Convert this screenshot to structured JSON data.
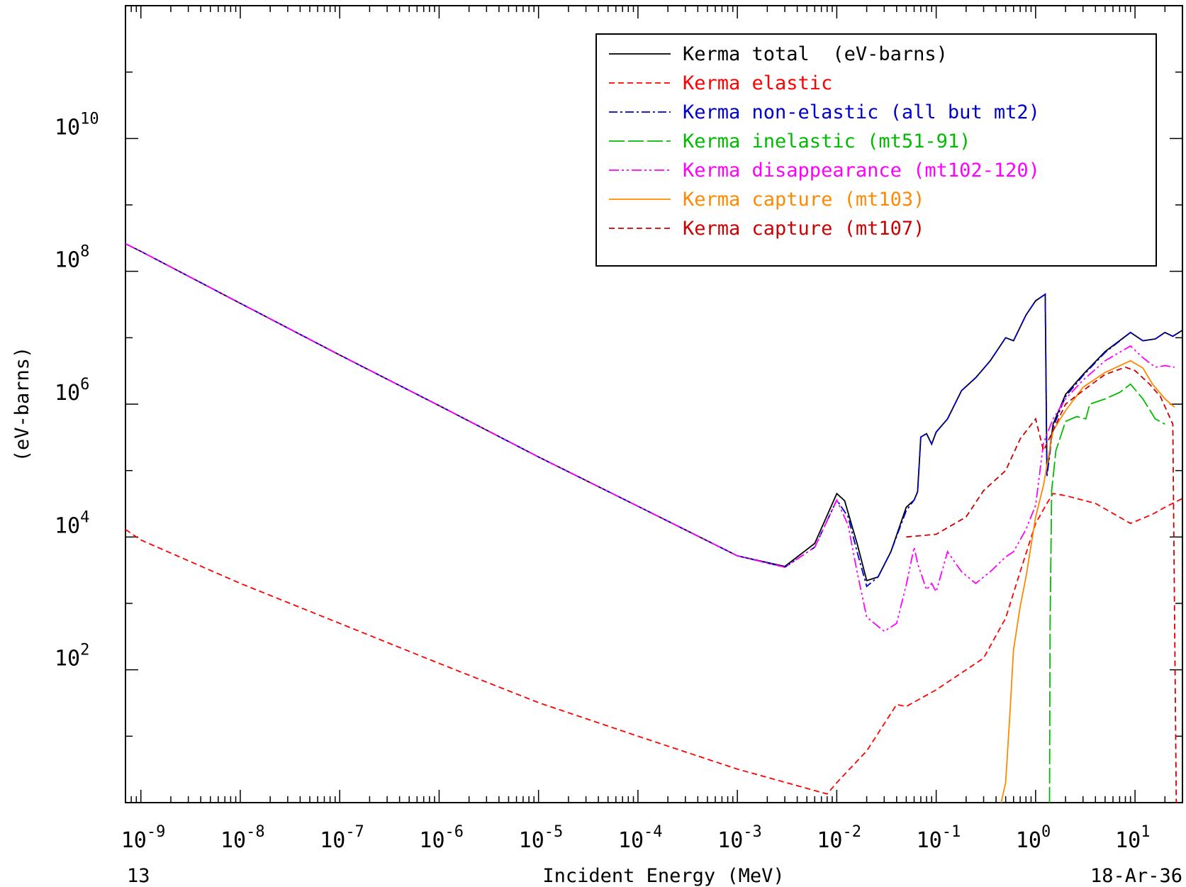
{
  "chart_data": {
    "type": "line",
    "title": "",
    "xlabel": "Incident Energy (MeV)",
    "ylabel": "(eV-barns)",
    "x_scale": "log",
    "y_scale": "log",
    "xlim": [
      7e-10,
      30
    ],
    "ylim": [
      1,
      1000000000000.0
    ],
    "x_tick_labels": [
      {
        "value": 1e-09,
        "base": "10",
        "exp": "-9"
      },
      {
        "value": 1e-08,
        "base": "10",
        "exp": "-8"
      },
      {
        "value": 1e-07,
        "base": "10",
        "exp": "-7"
      },
      {
        "value": 1e-06,
        "base": "10",
        "exp": "-6"
      },
      {
        "value": 1e-05,
        "base": "10",
        "exp": "-5"
      },
      {
        "value": 0.0001,
        "base": "10",
        "exp": "-4"
      },
      {
        "value": 0.001,
        "base": "10",
        "exp": "-3"
      },
      {
        "value": 0.01,
        "base": "10",
        "exp": "-2"
      },
      {
        "value": 0.1,
        "base": "10",
        "exp": "-1"
      },
      {
        "value": 1,
        "base": "10",
        "exp": "0"
      },
      {
        "value": 10,
        "base": "10",
        "exp": "1"
      }
    ],
    "y_tick_labels": [
      {
        "value": 100,
        "base": "10",
        "exp": "2"
      },
      {
        "value": 10000,
        "base": "10",
        "exp": "4"
      },
      {
        "value": 1000000,
        "base": "10",
        "exp": "6"
      },
      {
        "value": 100000000,
        "base": "10",
        "exp": "8"
      },
      {
        "value": 10000000000,
        "base": "10",
        "exp": "10"
      }
    ],
    "legend_position": "top-right",
    "series": [
      {
        "name": "Kerma total  (eV-barns)",
        "color": "#000000",
        "dash": "solid",
        "points": [
          [
            7e-10,
            260000000.0
          ],
          [
            1e-09,
            200000000.0
          ],
          [
            1e-08,
            33000000.0
          ],
          [
            1e-07,
            5500000.0
          ],
          [
            1e-06,
            950000.0
          ],
          [
            1e-05,
            160000.0
          ],
          [
            0.0001,
            29000.0
          ],
          [
            0.0003,
            12800.0
          ],
          [
            0.001,
            5200.0
          ],
          [
            0.003,
            3600.0
          ],
          [
            0.006,
            8000.0
          ],
          [
            0.01,
            45000.0
          ],
          [
            0.012,
            35000.0
          ],
          [
            0.016,
            8000.0
          ],
          [
            0.02,
            2200.0
          ],
          [
            0.026,
            2500.0
          ],
          [
            0.035,
            6000.0
          ],
          [
            0.05,
            28000.0
          ],
          [
            0.06,
            36000.0
          ],
          [
            0.065,
            48000.0
          ],
          [
            0.07,
            320000.0
          ],
          [
            0.08,
            360000.0
          ],
          [
            0.09,
            250000.0
          ],
          [
            0.1,
            380000.0
          ],
          [
            0.13,
            600000.0
          ],
          [
            0.18,
            1600000.0
          ],
          [
            0.25,
            2500000.0
          ],
          [
            0.35,
            4500000.0
          ],
          [
            0.5,
            10000000.0
          ],
          [
            0.6,
            9000000.0
          ],
          [
            0.8,
            22000000.0
          ],
          [
            1.0,
            36000000.0
          ],
          [
            1.25,
            45000000.0
          ],
          [
            1.3,
            95000.0
          ],
          [
            1.5,
            500000.0
          ],
          [
            2,
            1400000.0
          ],
          [
            3,
            2800000.0
          ],
          [
            5,
            6200000.0
          ],
          [
            9,
            12000000.0
          ],
          [
            12,
            9000000.0
          ],
          [
            16,
            9600000.0
          ],
          [
            20,
            12000000.0
          ],
          [
            24,
            10500000.0
          ],
          [
            30,
            13000000.0
          ]
        ]
      },
      {
        "name": "Kerma elastic",
        "color": "#ff0000",
        "dash": "8,5",
        "points": [
          [
            7e-10,
            13000.0
          ],
          [
            1e-09,
            9000.0
          ],
          [
            1e-08,
            2000.0
          ],
          [
            1e-07,
            500.0
          ],
          [
            1e-06,
            125.0
          ],
          [
            1e-05,
            32
          ],
          [
            0.0001,
            10
          ],
          [
            0.001,
            3.2
          ],
          [
            0.008,
            1.35
          ],
          [
            0.01,
            2
          ],
          [
            0.02,
            6
          ],
          [
            0.04,
            30
          ],
          [
            0.05,
            28
          ],
          [
            0.1,
            50
          ],
          [
            0.3,
            150
          ],
          [
            0.5,
            600
          ],
          [
            0.7,
            3000
          ],
          [
            1.0,
            16000.0
          ],
          [
            1.3,
            32000.0
          ],
          [
            1.5,
            45000.0
          ],
          [
            2,
            42000.0
          ],
          [
            4,
            32000.0
          ],
          [
            9,
            16000.0
          ],
          [
            15,
            22000.0
          ],
          [
            20,
            28000.0
          ],
          [
            30,
            38000.0
          ]
        ]
      },
      {
        "name": "Kerma non-elastic (all but mt2)",
        "color": "#0000cc",
        "dash": "12,4,3,4",
        "points": [
          [
            7e-10,
            260000000.0
          ],
          [
            1e-09,
            200000000.0
          ],
          [
            1e-08,
            33000000.0
          ],
          [
            1e-07,
            5500000.0
          ],
          [
            1e-06,
            950000.0
          ],
          [
            1e-05,
            160000.0
          ],
          [
            0.0001,
            29000.0
          ],
          [
            0.0003,
            12800.0
          ],
          [
            0.001,
            5200.0
          ],
          [
            0.003,
            3500.0
          ],
          [
            0.006,
            7000.0
          ],
          [
            0.01,
            36000.0
          ],
          [
            0.013,
            20000.0
          ],
          [
            0.016,
            6000.0
          ],
          [
            0.02,
            1800.0
          ],
          [
            0.026,
            2500.0
          ],
          [
            0.035,
            6000.0
          ],
          [
            0.05,
            25000.0
          ],
          [
            0.06,
            36000.0
          ],
          [
            0.065,
            48000.0
          ],
          [
            0.07,
            320000.0
          ],
          [
            0.08,
            360000.0
          ],
          [
            0.09,
            250000.0
          ],
          [
            0.1,
            380000.0
          ],
          [
            0.13,
            600000.0
          ],
          [
            0.18,
            1600000.0
          ],
          [
            0.25,
            2500000.0
          ],
          [
            0.35,
            4500000.0
          ],
          [
            0.5,
            10000000.0
          ],
          [
            0.6,
            9000000.0
          ],
          [
            0.8,
            22000000.0
          ],
          [
            1.0,
            36000000.0
          ],
          [
            1.25,
            45000000.0
          ],
          [
            1.3,
            80000.0
          ],
          [
            1.5,
            450000.0
          ],
          [
            2,
            1300000.0
          ],
          [
            3,
            2700000.0
          ],
          [
            5,
            6000000.0
          ],
          [
            9,
            12000000.0
          ],
          [
            12,
            9000000.0
          ],
          [
            16,
            9600000.0
          ],
          [
            20,
            12000000.0
          ],
          [
            24,
            10500000.0
          ],
          [
            30,
            13000000.0
          ]
        ]
      },
      {
        "name": "Kerma inelastic (mt51-91)",
        "color": "#00bb00",
        "dash": "22,5",
        "points": [
          [
            1.38,
            1
          ],
          [
            1.4,
            500
          ],
          [
            1.45,
            50000.0
          ],
          [
            1.6,
            200000.0
          ],
          [
            2,
            550000.0
          ],
          [
            2.6,
            650000.0
          ],
          [
            3.2,
            600000.0
          ],
          [
            3.5,
            1000000.0
          ],
          [
            5,
            1200000.0
          ],
          [
            7,
            1500000.0
          ],
          [
            9,
            2000000.0
          ],
          [
            12,
            1200000.0
          ],
          [
            16,
            600000.0
          ],
          [
            20,
            500000.0
          ]
        ]
      },
      {
        "name": "Kerma disappearance (mt102-120)",
        "color": "#ff00ff",
        "dash": "14,4,3,4,3,4",
        "points": [
          [
            7e-10,
            260000000.0
          ],
          [
            1e-09,
            200000000.0
          ],
          [
            1e-08,
            33000000.0
          ],
          [
            1e-07,
            5500000.0
          ],
          [
            1e-06,
            950000.0
          ],
          [
            1e-05,
            160000.0
          ],
          [
            0.0001,
            29000.0
          ],
          [
            0.0003,
            12800.0
          ],
          [
            0.001,
            5200.0
          ],
          [
            0.003,
            3500.0
          ],
          [
            0.006,
            7000.0
          ],
          [
            0.01,
            36000.0
          ],
          [
            0.013,
            15000.0
          ],
          [
            0.016,
            3000.0
          ],
          [
            0.02,
            620.0
          ],
          [
            0.03,
            380.0
          ],
          [
            0.04,
            500.0
          ],
          [
            0.05,
            1900.0
          ],
          [
            0.06,
            7000.0
          ],
          [
            0.065,
            4000.0
          ],
          [
            0.08,
            1600.0
          ],
          [
            0.09,
            2000.0
          ],
          [
            0.1,
            1500.0
          ],
          [
            0.13,
            6000.0
          ],
          [
            0.18,
            3000.0
          ],
          [
            0.25,
            2000.0
          ],
          [
            0.35,
            3000.0
          ],
          [
            0.5,
            5000.0
          ],
          [
            0.6,
            6000.0
          ],
          [
            0.8,
            13000.0
          ],
          [
            1.0,
            30000.0
          ],
          [
            1.2,
            260000.0
          ],
          [
            1.5,
            600000.0
          ],
          [
            2,
            1200000.0
          ],
          [
            3,
            2300000.0
          ],
          [
            5,
            4500000.0
          ],
          [
            9,
            7500000.0
          ],
          [
            12,
            5000000.0
          ],
          [
            16,
            3600000.0
          ],
          [
            20,
            3800000.0
          ],
          [
            25,
            3600000.0
          ]
        ]
      },
      {
        "name": "Kerma capture (mt103)",
        "color": "#ff8800",
        "dash": "solid",
        "points": [
          [
            0.45,
            1
          ],
          [
            0.5,
            2
          ],
          [
            0.55,
            20
          ],
          [
            0.6,
            200
          ],
          [
            0.7,
            900
          ],
          [
            0.8,
            2500
          ],
          [
            1.0,
            20000.0
          ],
          [
            1.2,
            60000.0
          ],
          [
            1.5,
            400000.0
          ],
          [
            2,
            800000.0
          ],
          [
            3,
            1800000.0
          ],
          [
            5,
            3000000.0
          ],
          [
            9,
            4500000.0
          ],
          [
            12,
            3500000.0
          ],
          [
            15,
            2000000.0
          ],
          [
            20,
            1200000.0
          ],
          [
            25,
            900000.0
          ]
        ]
      },
      {
        "name": "Kerma capture (mt107)",
        "color": "#cc0000",
        "dash": "8,5",
        "points": [
          [
            0.05,
            10000.0
          ],
          [
            0.1,
            11000.0
          ],
          [
            0.2,
            20000.0
          ],
          [
            0.3,
            50000.0
          ],
          [
            0.5,
            100000.0
          ],
          [
            0.7,
            300000.0
          ],
          [
            1.0,
            600000.0
          ],
          [
            1.2,
            200000.0
          ],
          [
            1.5,
            400000.0
          ],
          [
            2,
            1000000.0
          ],
          [
            3,
            1600000.0
          ],
          [
            5,
            2800000.0
          ],
          [
            8,
            3600000.0
          ],
          [
            10,
            3200000.0
          ],
          [
            14,
            2000000.0
          ],
          [
            18,
            1300000.0
          ],
          [
            24,
            500000.0
          ],
          [
            26,
            1
          ]
        ]
      }
    ],
    "corner_left": "13",
    "corner_right": "18-Ar-36"
  }
}
